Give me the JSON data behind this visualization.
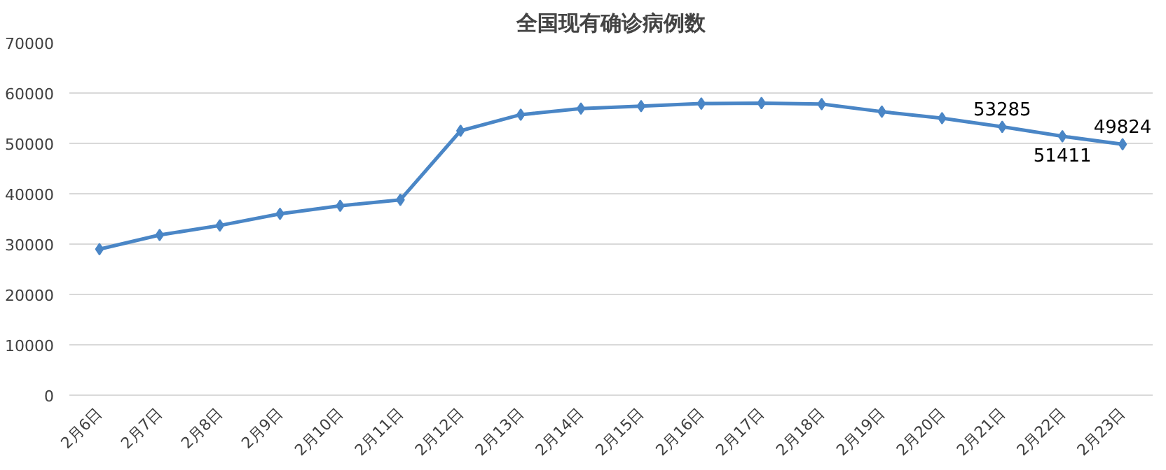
{
  "chart_data": {
    "type": "line",
    "title": "全国现有确诊病例数",
    "categories": [
      "2月6日",
      "2月7日",
      "2月8日",
      "2月9日",
      "2月10日",
      "2月11日",
      "2月12日",
      "2月13日",
      "2月14日",
      "2月15日",
      "2月16日",
      "2月17日",
      "2月18日",
      "2月19日",
      "2月20日",
      "2月21日",
      "2月22日",
      "2月23日"
    ],
    "series": [
      {
        "color": "#4a86c6",
        "values": [
          29000,
          31800,
          33700,
          36000,
          37600,
          38800,
          52500,
          55700,
          56900,
          57400,
          57900,
          58000,
          57800,
          56300,
          55000,
          53285,
          51411,
          49824
        ],
        "value_labels": [
          null,
          null,
          null,
          null,
          null,
          null,
          null,
          null,
          null,
          null,
          null,
          null,
          null,
          null,
          null,
          "53285",
          "51411",
          "49824"
        ]
      }
    ],
    "ylim": [
      0,
      70000
    ],
    "yticks": [
      0,
      10000,
      20000,
      30000,
      40000,
      50000,
      60000,
      70000
    ],
    "grid": "y",
    "marker": "diamond",
    "line_style": "solid"
  }
}
